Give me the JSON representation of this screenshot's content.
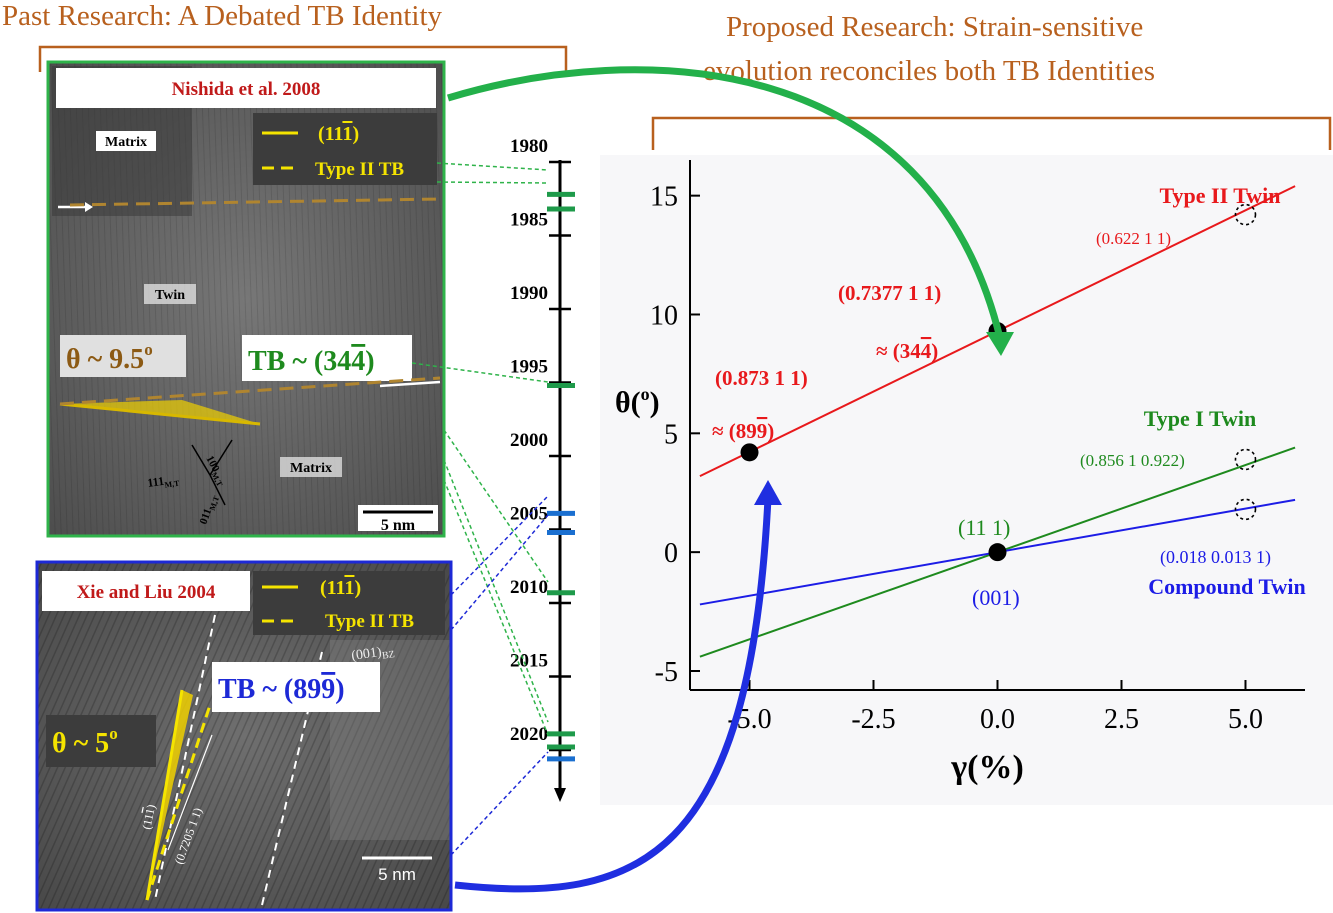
{
  "headings": {
    "left": "Past Research: A Debated TB Identity",
    "right_line1": "Proposed Research: Strain-sensitive",
    "right_line2": "evolution reconciles both TB Identities"
  },
  "colors": {
    "heading": "#b8601e",
    "type2": "#e8191c",
    "type1": "#1e8a1e",
    "compound": "#1c1ce6",
    "green_frame": "#2fb34a",
    "blue_frame": "#1d29d6",
    "tem_legend_yellow": "#f5e400",
    "theta_brown": "#8c5a14"
  },
  "tem_top": {
    "citation": "Nishida et al. 2008",
    "legend_solid": "(11̅1)",
    "legend_solid_text": "(11",
    "legend_solid_bar": "1",
    "legend_solid_close": ")",
    "legend_dashed": "Type II TB",
    "label_matrix_top": "Matrix",
    "label_twin": "Twin",
    "label_matrix_bottom": "Matrix",
    "theta": "θ ~ 9.5°",
    "theta_main": "θ ~ 9.5",
    "theta_sup": "o",
    "tb_prefix": "TB ~ (34",
    "tb_bar": "4",
    "tb_suffix": ")",
    "axis_100": "100",
    "axis_100_sub": "M,T",
    "axis_111": "111",
    "axis_111_sub": "M,T",
    "axis_011": "011",
    "axis_011_sub": "M,T",
    "scale": "5 nm"
  },
  "tem_bottom": {
    "citation": "Xie and Liu 2004",
    "legend_solid_text": "(11",
    "legend_solid_bar": "1",
    "legend_solid_close": ")",
    "legend_dashed": "Type II TB",
    "plane_label": "(001)",
    "plane_sub": "BZ",
    "tb_prefix": "TB ~ (89",
    "tb_bar": "9",
    "tb_suffix": ")",
    "theta_main": "θ ~ 5",
    "theta_sup": "o",
    "diag_label1": "(11",
    "diag_label1_bar": "1",
    "diag_label1_close": ")",
    "diag_label2": "(0.7205 1 1)",
    "scale": "5 nm"
  },
  "timeline": {
    "years": [
      "1980",
      "1985",
      "1990",
      "1995",
      "2000",
      "2005",
      "2010",
      "2015",
      "2020"
    ]
  },
  "chart_data": {
    "type": "line",
    "xlabel": "γ(%)",
    "ylabel": "θ(°)",
    "ylabel_main": "θ(",
    "ylabel_sup": "o",
    "ylabel_close": ")",
    "xlim": [
      -6.2,
      6.2
    ],
    "ylim": [
      -5.8,
      16.5
    ],
    "x_ticks": [
      -5.0,
      -2.5,
      0.0,
      2.5,
      5.0
    ],
    "x_tick_labels": [
      "-5.0",
      "-2.5",
      "0.0",
      "2.5",
      "5.0"
    ],
    "y_ticks": [
      -5,
      0,
      5,
      10,
      15
    ],
    "y_tick_labels": [
      "-5",
      "0",
      "5",
      "10",
      "15"
    ],
    "series": [
      {
        "name": "Type II Twin",
        "x": [
          -6.0,
          6.0
        ],
        "y": [
          3.2,
          15.4
        ]
      },
      {
        "name": "Type I Twin",
        "x": [
          -6.0,
          6.0
        ],
        "y": [
          -4.4,
          4.4
        ]
      },
      {
        "name": "Compound Twin",
        "x": [
          -6.0,
          6.0
        ],
        "y": [
          -2.2,
          2.2
        ]
      }
    ],
    "markers": [
      {
        "x": -5.0,
        "y": 4.2,
        "style": "filled"
      },
      {
        "x": 0.0,
        "y": 9.3,
        "style": "filled"
      },
      {
        "x": 0.0,
        "y": 0.0,
        "style": "filled"
      },
      {
        "x": 5.0,
        "y": 14.2,
        "style": "open"
      },
      {
        "x": 5.0,
        "y": 3.9,
        "style": "open"
      },
      {
        "x": 5.0,
        "y": 1.8,
        "style": "open"
      }
    ],
    "annotations": {
      "a1_line1_a": "(0.873 1 1",
      "a1_line1_b": "̄)",
      "a1_text1": "(0.873 1 1)",
      "a1_text2": "≈ (89",
      "a1_text2_bar": "9",
      "a1_text2_close": ")",
      "a2_text1": "(0.7377 1 1)",
      "a2_text2": "≈ (34",
      "a2_text2_bar": "4",
      "a2_text2_close": ")",
      "a3": "(0.622 1 1)",
      "a4": "(0.856 1 0.922)",
      "a5": "(11 1)",
      "a6": "(001)",
      "a7": "(0.018 0.013 1)"
    }
  }
}
